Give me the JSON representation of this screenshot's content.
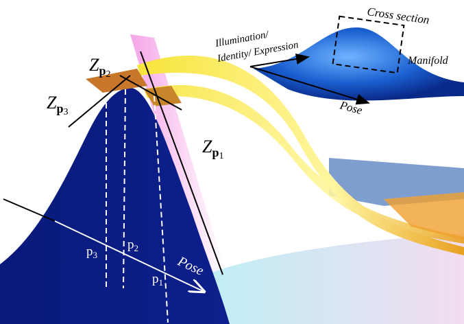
{
  "inset": {
    "cross_section": "Cross section",
    "axis_1_line1": "Illumination/",
    "axis_1_line2": "Identity/ Expression",
    "surface": "Manifold",
    "axis_2": "Pose"
  },
  "tangent_spaces": [
    {
      "symbol": "Z",
      "subscript": "p",
      "index": "2"
    },
    {
      "symbol": "Z",
      "subscript": "p",
      "index": "3"
    },
    {
      "symbol": "Z",
      "subscript": "p",
      "index": "1"
    }
  ],
  "points": [
    {
      "symbol": "p",
      "index": "3"
    },
    {
      "symbol": "p",
      "index": "2"
    },
    {
      "symbol": "p",
      "index": "1"
    }
  ],
  "pose_axis": "Pose"
}
